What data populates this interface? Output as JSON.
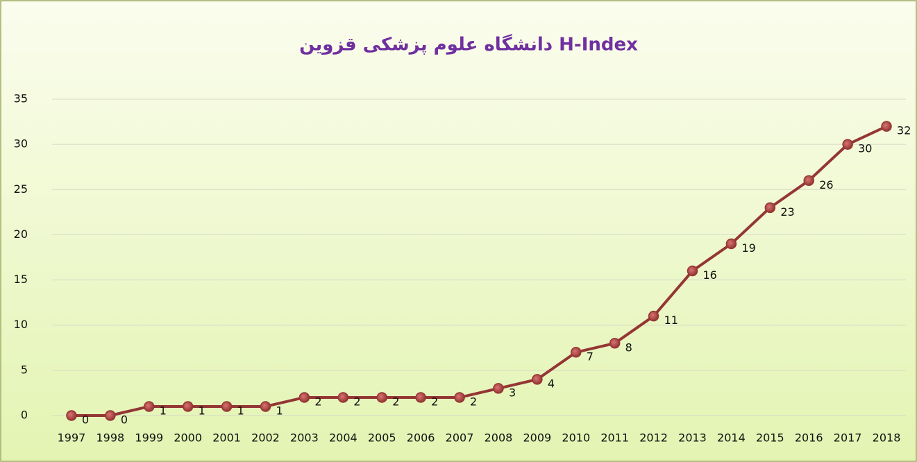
{
  "chart_data": {
    "type": "line",
    "title": "H-Index دانشگاه علوم پزشکی قزوین",
    "categories": [
      "1997",
      "1998",
      "1999",
      "2000",
      "2001",
      "2002",
      "2003",
      "2004",
      "2005",
      "2006",
      "2007",
      "2008",
      "2009",
      "2010",
      "2011",
      "2012",
      "2013",
      "2014",
      "2015",
      "2016",
      "2017",
      "2018"
    ],
    "series": [
      {
        "name": "H-Index",
        "color": "#943634",
        "values": [
          0,
          0,
          1,
          1,
          1,
          1,
          2,
          2,
          2,
          2,
          2,
          3,
          4,
          7,
          8,
          11,
          16,
          19,
          23,
          26,
          30,
          32
        ]
      }
    ],
    "ylim": [
      0,
      35
    ],
    "yticks": [
      0,
      5,
      10,
      15,
      20,
      25,
      30,
      35
    ],
    "grid": true,
    "data_labels": true,
    "legend": false
  }
}
